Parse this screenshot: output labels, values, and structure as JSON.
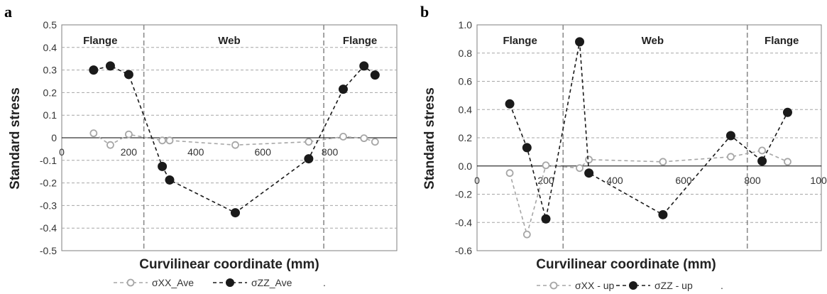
{
  "chart_data": [
    {
      "panel": "a",
      "type": "line",
      "xlabel": "Curvilinear coordinate (mm)",
      "ylabel": "Standard stress",
      "xlim": [
        0,
        1000
      ],
      "ylim": [
        -0.5,
        0.5
      ],
      "y_ticks": [
        "0.5",
        "0.4",
        "0.3",
        "0.2",
        "0.1",
        "0",
        "-0.1",
        "-0.2",
        "-0.3",
        "-0.4",
        "-0.5"
      ],
      "y_tick_values": [
        0.5,
        0.4,
        0.3,
        0.2,
        0.1,
        0,
        -0.1,
        -0.2,
        -0.3,
        -0.4,
        -0.5
      ],
      "x_ticks": [
        "0",
        "200",
        "400",
        "600",
        "800"
      ],
      "x_tick_values": [
        0,
        200,
        400,
        600,
        800
      ],
      "x_tick_anchor": "zero-line",
      "grid": "horizontal dashed",
      "dividers": [
        245,
        782
      ],
      "regions": [
        {
          "label": "Flange",
          "x": 115
        },
        {
          "label": "Web",
          "x": 500
        },
        {
          "label": "Flange",
          "x": 890
        }
      ],
      "series": [
        {
          "name": "σXX_Ave",
          "color": "#a6a6a6",
          "marker": "open-circle",
          "x": [
            95,
            145,
            200,
            300,
            322,
            518,
            737,
            840,
            902,
            935
          ],
          "y": [
            0.02,
            -0.032,
            0.015,
            -0.012,
            -0.012,
            -0.032,
            -0.018,
            0.005,
            -0.002,
            -0.018
          ]
        },
        {
          "name": "σZZ_Ave",
          "color": "#1a1a1a",
          "marker": "filled-circle",
          "x": [
            95,
            145,
            200,
            300,
            322,
            518,
            737,
            840,
            902,
            935
          ],
          "y": [
            0.3,
            0.318,
            0.28,
            -0.127,
            -0.187,
            -0.332,
            -0.093,
            0.215,
            0.318,
            0.278
          ]
        }
      ],
      "legend": [
        "σXX_Ave",
        "σZZ_Ave",
        "."
      ],
      "legend_position": "bottom"
    },
    {
      "panel": "b",
      "type": "line",
      "xlabel": "Curvilinear coordinate (mm)",
      "ylabel": "Standard stress",
      "xlim": [
        0,
        1000
      ],
      "ylim": [
        -0.6,
        1.0
      ],
      "y_ticks": [
        "1.0",
        "0.8",
        "0.6",
        "0.4",
        "0.2",
        "0.0",
        "-0.2",
        "-0.4",
        "-0.6"
      ],
      "y_tick_values": [
        1.0,
        0.8,
        0.6,
        0.4,
        0.2,
        0.0,
        -0.2,
        -0.4,
        -0.6
      ],
      "x_ticks": [
        "0",
        "200",
        "400",
        "600",
        "800",
        "1000"
      ],
      "x_tick_values": [
        0,
        200,
        400,
        600,
        800,
        1000
      ],
      "x_tick_anchor": "zero-line",
      "grid": "horizontal dashed",
      "dividers": [
        250,
        785
      ],
      "regions": [
        {
          "label": "Flange",
          "x": 125
        },
        {
          "label": "Web",
          "x": 510
        },
        {
          "label": "Flange",
          "x": 885
        }
      ],
      "series": [
        {
          "name": "σXX - up",
          "color": "#a6a6a6",
          "marker": "open-circle",
          "x": [
            95,
            145,
            200,
            298,
            325,
            540,
            737,
            828,
            902
          ],
          "y": [
            -0.05,
            -0.485,
            0.005,
            -0.015,
            0.045,
            0.03,
            0.065,
            0.11,
            0.03
          ]
        },
        {
          "name": "σZZ - up",
          "color": "#1a1a1a",
          "marker": "filled-circle",
          "x": [
            95,
            145,
            200,
            298,
            325,
            540,
            737,
            828,
            902
          ],
          "y": [
            0.44,
            0.13,
            -0.375,
            0.88,
            -0.05,
            -0.345,
            0.215,
            0.035,
            0.38
          ]
        }
      ],
      "legend": [
        "σXX - up",
        "σZZ - up",
        "."
      ],
      "legend_position": "bottom"
    }
  ]
}
